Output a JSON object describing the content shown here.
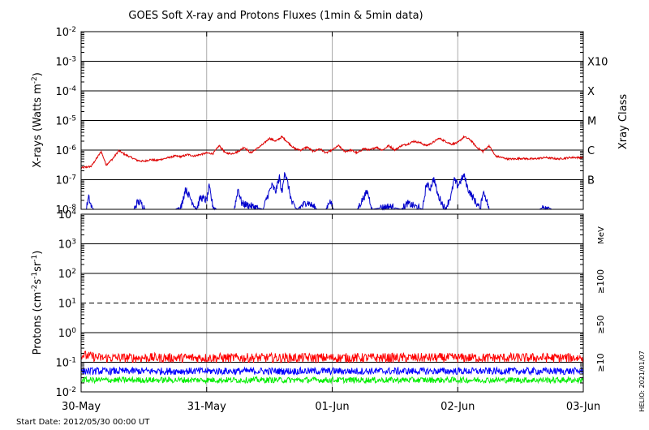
{
  "title": "GOES Soft X-ray and Protons Fluxes   (1min & 5min data)",
  "start_date": "Start Date: 2012/05/30 00:00 UT",
  "credit": "HELIO: 2021/01/07",
  "colors": {
    "xray_long": "#dd0000",
    "xray_short": "#0000cc",
    "proton_10": "#ff0000",
    "proton_50": "#0000ff",
    "proton_100": "#00ee00"
  },
  "chart_data": [
    {
      "type": "line",
      "panel": "xray",
      "ylabel_base": "X-rays (Watts m",
      "ylabel_exp": "-2",
      "ylabel_end": ")",
      "yscale": "log",
      "ylim_exp": [
        -8,
        -2
      ],
      "yticks": [
        {
          "base": "10",
          "exp": "-2"
        },
        {
          "base": "10",
          "exp": "-3"
        },
        {
          "base": "10",
          "exp": "-4"
        },
        {
          "base": "10",
          "exp": "-5"
        },
        {
          "base": "10",
          "exp": "-6"
        },
        {
          "base": "10",
          "exp": "-7"
        },
        {
          "base": "10",
          "exp": "-8"
        }
      ],
      "right_axis_title": "Xray Class",
      "class_labels": [
        {
          "label": "X10",
          "exp": -3
        },
        {
          "label": "X",
          "exp": -4
        },
        {
          "label": "M",
          "exp": -5
        },
        {
          "label": "C",
          "exp": -6
        },
        {
          "label": "B",
          "exp": -7
        }
      ],
      "xlim_days": [
        0,
        4
      ],
      "xticks": [
        "30-May",
        "31-May",
        "01-Jun",
        "02-Jun",
        "03-Jun"
      ],
      "series": [
        {
          "key": "long",
          "x": [
            0,
            0.08,
            0.12,
            0.16,
            0.2,
            0.25,
            0.3,
            0.35,
            0.4,
            0.45,
            0.5,
            0.55,
            0.6,
            0.65,
            0.7,
            0.75,
            0.8,
            0.85,
            0.9,
            0.95,
            1.0,
            1.05,
            1.1,
            1.15,
            1.2,
            1.25,
            1.3,
            1.35,
            1.4,
            1.45,
            1.5,
            1.55,
            1.6,
            1.65,
            1.7,
            1.75,
            1.8,
            1.85,
            1.9,
            1.95,
            2.0,
            2.05,
            2.1,
            2.15,
            2.2,
            2.25,
            2.3,
            2.35,
            2.4,
            2.45,
            2.5,
            2.55,
            2.6,
            2.65,
            2.7,
            2.75,
            2.8,
            2.85,
            2.9,
            2.95,
            3.0,
            3.05,
            3.1,
            3.15,
            3.2,
            3.25,
            3.3,
            3.35,
            3.4,
            3.45,
            3.5,
            3.6,
            3.7,
            3.8,
            3.9,
            4.0
          ],
          "y_exp": [
            -6.6,
            -6.55,
            -6.3,
            -6.05,
            -6.5,
            -6.3,
            -6.02,
            -6.15,
            -6.25,
            -6.35,
            -6.38,
            -6.32,
            -6.35,
            -6.3,
            -6.25,
            -6.2,
            -6.22,
            -6.15,
            -6.2,
            -6.15,
            -6.1,
            -6.12,
            -5.85,
            -6.1,
            -6.12,
            -6.05,
            -5.9,
            -6.1,
            -5.95,
            -5.8,
            -5.6,
            -5.7,
            -5.55,
            -5.75,
            -5.95,
            -6.0,
            -5.9,
            -6.05,
            -5.95,
            -6.1,
            -6.0,
            -5.85,
            -6.05,
            -6.0,
            -6.1,
            -5.95,
            -6.0,
            -5.9,
            -6.0,
            -5.85,
            -6.0,
            -5.85,
            -5.8,
            -5.7,
            -5.75,
            -5.85,
            -5.75,
            -5.6,
            -5.7,
            -5.8,
            -5.75,
            -5.55,
            -5.65,
            -5.9,
            -6.05,
            -5.85,
            -6.2,
            -6.25,
            -6.3,
            -6.3,
            -6.28,
            -6.3,
            -6.25,
            -6.3,
            -6.25,
            -6.25
          ]
        },
        {
          "key": "short",
          "x": [
            0.04,
            0.06,
            0.08,
            0.1,
            0.42,
            0.45,
            0.48,
            0.51,
            0.75,
            0.8,
            0.83,
            0.88,
            0.92,
            0.95,
            1.0,
            1.02,
            1.05,
            1.08,
            1.22,
            1.25,
            1.28,
            1.45,
            1.48,
            1.52,
            1.55,
            1.58,
            1.6,
            1.62,
            1.65,
            1.68,
            1.72,
            1.8,
            1.88,
            1.95,
            1.98,
            2.01,
            2.2,
            2.25,
            2.28,
            2.32,
            2.45,
            2.55,
            2.6,
            2.72,
            2.75,
            2.78,
            2.81,
            2.84,
            2.9,
            2.95,
            2.97,
            3.0,
            3.05,
            3.08,
            3.12,
            3.18,
            3.2,
            3.22,
            3.25,
            3.28,
            3.65,
            3.7,
            3.75
          ],
          "y_exp": [
            -8.0,
            -7.6,
            -7.9,
            -8.0,
            -8.0,
            -7.75,
            -7.8,
            -8.0,
            -8.0,
            -7.9,
            -7.3,
            -7.7,
            -8.0,
            -7.6,
            -7.7,
            -7.25,
            -7.9,
            -8.0,
            -8.0,
            -7.3,
            -7.8,
            -8.0,
            -7.6,
            -7.2,
            -7.4,
            -6.9,
            -7.5,
            -6.7,
            -7.2,
            -7.8,
            -8.0,
            -7.75,
            -8.0,
            -8.0,
            -7.7,
            -8.0,
            -8.0,
            -7.6,
            -7.4,
            -8.0,
            -7.9,
            -8.0,
            -7.8,
            -8.0,
            -7.15,
            -7.3,
            -6.95,
            -7.5,
            -8.0,
            -7.5,
            -7.0,
            -7.2,
            -6.85,
            -7.3,
            -7.6,
            -8.0,
            -7.4,
            -7.55,
            -8.0,
            -8.0,
            -8.0,
            -7.9,
            -8.0
          ]
        }
      ]
    },
    {
      "type": "line",
      "panel": "protons",
      "ylabel_base": "Protons (cm",
      "ylabel_exp1": "-2",
      "ylabel_mid": "s",
      "ylabel_exp2": "-1",
      "ylabel_mid2": "sr",
      "ylabel_exp3": "-1",
      "ylabel_end": ")",
      "yscale": "log",
      "ylim_exp": [
        -2,
        4
      ],
      "yticks": [
        {
          "base": "10",
          "exp": "4"
        },
        {
          "base": "10",
          "exp": "3"
        },
        {
          "base": "10",
          "exp": "2"
        },
        {
          "base": "10",
          "exp": "1"
        },
        {
          "base": "10",
          "exp": "0"
        },
        {
          "base": "10",
          "exp": "-1"
        },
        {
          "base": "10",
          "exp": "-2"
        }
      ],
      "threshold_exp": 1,
      "unit_label": "MeV",
      "energy_labels": [
        "≥100",
        "≥50",
        "≥10"
      ],
      "xlim_days": [
        0,
        4
      ],
      "series": [
        {
          "key": "p10",
          "name": "≥10",
          "base_exp": -0.85,
          "amp": 0.16
        },
        {
          "key": "p50",
          "name": "≥50",
          "base_exp": -1.3,
          "amp": 0.12
        },
        {
          "key": "p100",
          "name": "≥100",
          "base_exp": -1.6,
          "amp": 0.1
        }
      ]
    }
  ]
}
